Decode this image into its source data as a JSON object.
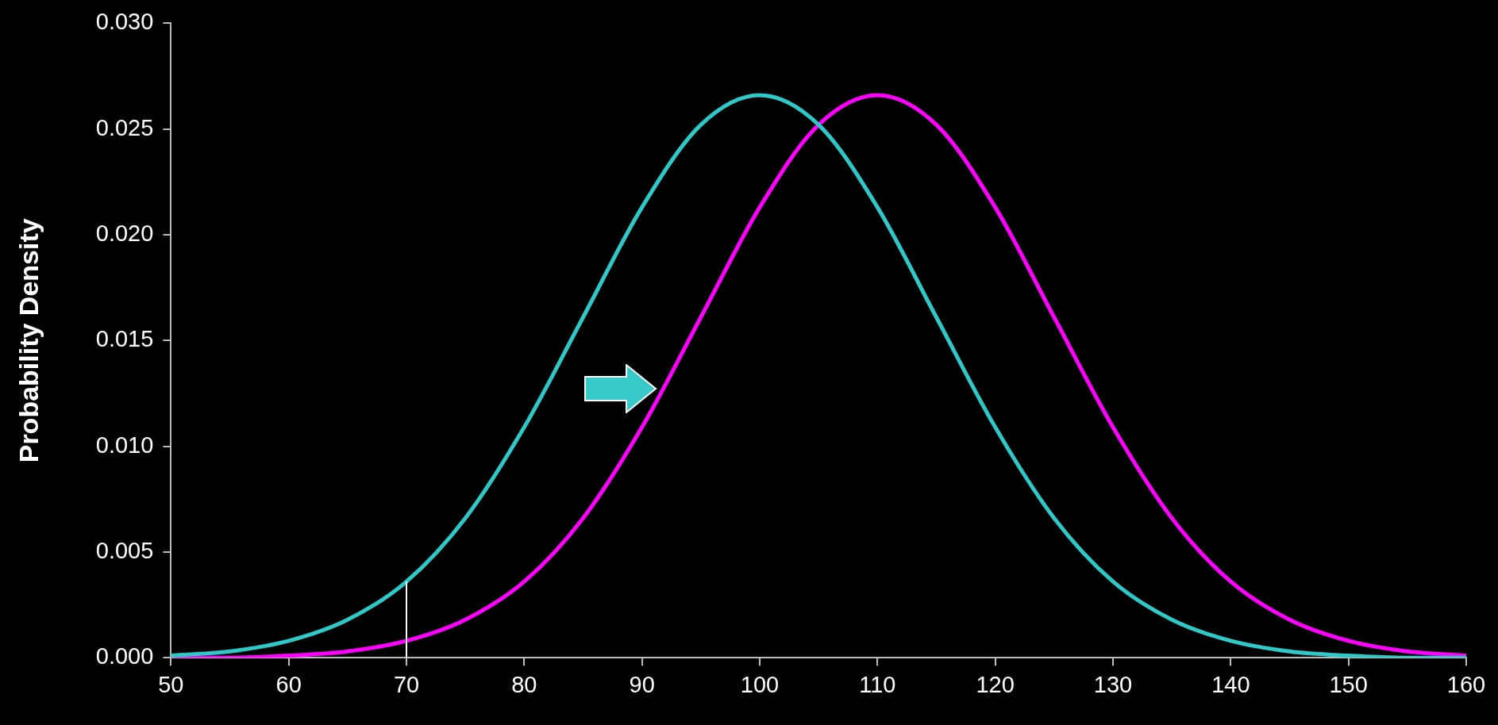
{
  "chart_data": {
    "type": "line",
    "ylabel": "Probability Density",
    "x": [
      50,
      55,
      60,
      65,
      70,
      75,
      80,
      85,
      90,
      95,
      100,
      105,
      110,
      115,
      120,
      125,
      130,
      135,
      140,
      145,
      150,
      155,
      160
    ],
    "series": [
      {
        "color": "#2ec8c8",
        "values": [
          0.0001,
          0.0003,
          0.0008,
          0.0018,
          0.0036,
          0.0066,
          0.0109,
          0.0161,
          0.0213,
          0.0252,
          0.0266,
          0.0252,
          0.0213,
          0.0161,
          0.0109,
          0.0066,
          0.0036,
          0.0018,
          0.0008,
          0.0003,
          0.0001,
          0,
          0
        ]
      },
      {
        "color": "#ff00ff",
        "values": [
          0,
          0,
          0.0001,
          0.0003,
          0.0008,
          0.0018,
          0.0036,
          0.0066,
          0.0109,
          0.0161,
          0.0213,
          0.0252,
          0.0266,
          0.0252,
          0.0213,
          0.0161,
          0.0109,
          0.0066,
          0.0036,
          0.0018,
          0.0008,
          0.0003,
          0.0001
        ]
      }
    ],
    "xlim": [
      50,
      160
    ],
    "xticks": [
      50,
      60,
      70,
      80,
      90,
      100,
      110,
      120,
      130,
      140,
      150,
      160
    ],
    "ylim": [
      0,
      0.03
    ],
    "yticks": [
      {
        "value": 0,
        "label": "0.000"
      },
      {
        "value": 0.005,
        "label": "0.005"
      },
      {
        "value": 0.01,
        "label": "0.010"
      },
      {
        "value": 0.015,
        "label": "0.015"
      },
      {
        "value": 0.02,
        "label": "0.020"
      },
      {
        "value": 0.025,
        "label": "0.025"
      },
      {
        "value": 0.03,
        "label": "0.030"
      }
    ],
    "ref_lines": [
      {
        "axis": "x",
        "value": 70,
        "color": "#ffffff"
      }
    ],
    "grid": false,
    "legend": false,
    "marker": "none",
    "line_style": "solid"
  }
}
